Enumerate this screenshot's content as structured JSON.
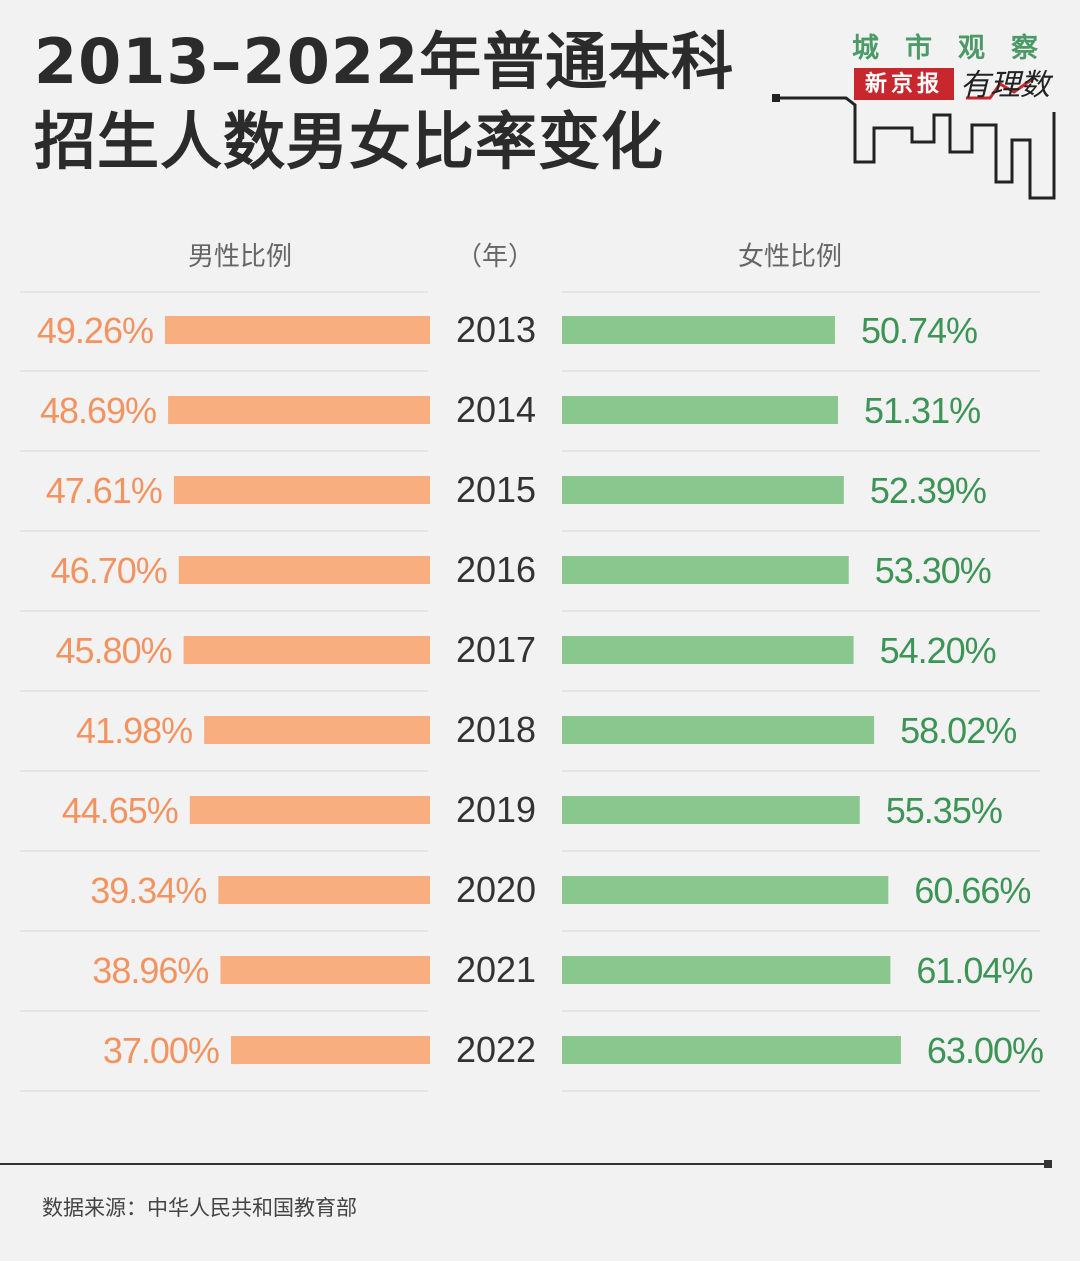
{
  "title": {
    "line1": "2013–2022年普通本科",
    "line2": "招生人数男女比率变化"
  },
  "brand": {
    "top": "城市观察",
    "paper": "新京报",
    "column": "有理数"
  },
  "headers": {
    "male": "男性比例",
    "year": "（年）",
    "female": "女性比例"
  },
  "colors": {
    "male": "#f9ae80",
    "male_text": "#f39360",
    "female": "#8ac78e",
    "female_text": "#3c9455",
    "year_text": "#333333"
  },
  "chart_data": {
    "type": "bar",
    "title": "2013–2022年普通本科招生人数男女比率变化",
    "categories": [
      "2013",
      "2014",
      "2015",
      "2016",
      "2017",
      "2018",
      "2019",
      "2020",
      "2021",
      "2022"
    ],
    "series": [
      {
        "name": "男性比例",
        "values": [
          49.26,
          48.69,
          47.61,
          46.7,
          45.8,
          41.98,
          44.65,
          39.34,
          38.96,
          37.0
        ],
        "labels": [
          "49.26%",
          "48.69%",
          "47.61%",
          "46.70%",
          "45.80%",
          "41.98%",
          "44.65%",
          "39.34%",
          "38.96%",
          "37.00%"
        ]
      },
      {
        "name": "女性比例",
        "values": [
          50.74,
          51.31,
          52.39,
          53.3,
          54.2,
          58.02,
          55.35,
          60.66,
          61.04,
          63.0
        ],
        "labels": [
          "50.74%",
          "51.31%",
          "52.39%",
          "53.30%",
          "54.20%",
          "58.02%",
          "55.35%",
          "60.66%",
          "61.04%",
          "63.00%"
        ]
      }
    ],
    "xlabel": "",
    "ylabel": "（年）",
    "unit": "%"
  },
  "source": "数据来源：中华人民共和国教育部"
}
